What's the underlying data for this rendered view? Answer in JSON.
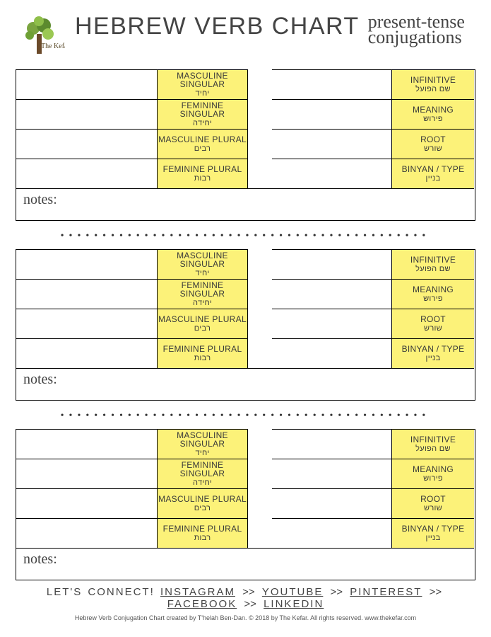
{
  "colors": {
    "label_bg": "#fcf279",
    "border": "#000000",
    "page_bg": "#ffffff",
    "text": "#3a3a3a"
  },
  "header": {
    "logo_text": "The Kefar",
    "title": "HEBREW VERB CHART",
    "subtitle_line1": "present-tense",
    "subtitle_line2": "conjugations"
  },
  "form_labels": [
    {
      "en": "MASCULINE SINGULAR",
      "he": "יחיד"
    },
    {
      "en": "FEMININE SINGULAR",
      "he": "יחידה"
    },
    {
      "en": "MASCULINE PLURAL",
      "he": "רבים"
    },
    {
      "en": "FEMININE PLURAL",
      "he": "רבות"
    }
  ],
  "info_labels": [
    {
      "en": "INFINITIVE",
      "he": "שם הפועל"
    },
    {
      "en": "MEANING",
      "he": "פירוש"
    },
    {
      "en": "ROOT",
      "he": "שורש"
    },
    {
      "en": "BINYAN / TYPE",
      "he": "בניין"
    }
  ],
  "notes_label": "notes:",
  "separator": "••••••••••••••••••••••••••••••••••••••••••••",
  "footer": {
    "lead": "LET'S CONNECT!",
    "links": [
      "INSTAGRAM",
      "YOUTUBE",
      "PINTEREST",
      "FACEBOOK",
      "LINKEDIN"
    ],
    "sep": ">>",
    "copyright": "Hebrew Verb Conjugation Chart created by T'helah Ben-Dan. © 2018 by The Kefar. All rights reserved. www.thekefar.com"
  },
  "section_count": 3
}
